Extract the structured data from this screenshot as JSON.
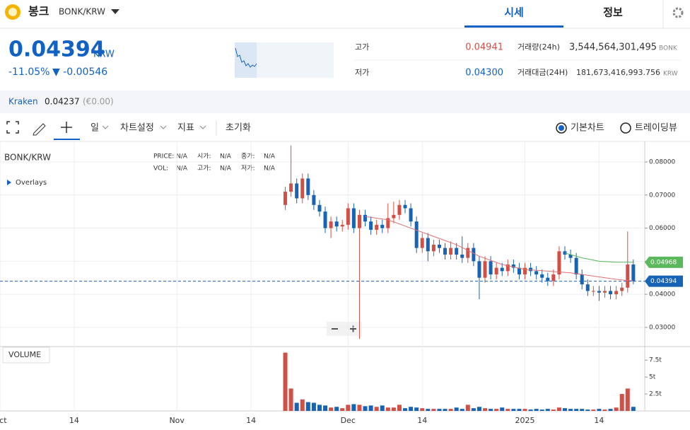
{
  "header": {
    "coin_name": "봉크",
    "pair": "BONK/KRW",
    "tabs": [
      "시세",
      "정보"
    ]
  },
  "ticker": {
    "price": "0.04394",
    "currency": "KRW",
    "change_rate": "-11.05%",
    "change": "▼ -0.00546",
    "high_label": "고가",
    "high": "0.04941",
    "low_label": "저가",
    "low": "0.04300",
    "volume_label": "거래량(24h)",
    "volume": "3,544,564,301,495",
    "volume_unit": "BONK",
    "value_label": "거래대금(24H)",
    "value": "181,673,416,993.756",
    "value_unit": "KRW"
  },
  "exchange": {
    "name": "Kraken",
    "price": "0.04237",
    "price_eur": "(€0.00)"
  },
  "toolbar": {
    "interval": "일",
    "settings": "차트설정",
    "indicators": "지표",
    "reset": "초기화",
    "modes": [
      "기본차트",
      "트레이딩뷰"
    ]
  },
  "chart_data": {
    "type": "candlestick",
    "title": "BONK/KRW",
    "overlays_label": "Overlays",
    "volume_title": "VOLUME",
    "legend": [
      {
        "label": "PRICE:",
        "value": "N/A"
      },
      {
        "label": "시가:",
        "value": "N/A"
      },
      {
        "label": "종가:",
        "value": "N/A"
      },
      {
        "label": "VOL:",
        "value": "N/A"
      },
      {
        "label": "고가:",
        "value": "N/A"
      },
      {
        "label": "저가:",
        "value": "N/A"
      }
    ],
    "up_color": "#d24f45",
    "down_color": "#1763b6",
    "x": [
      50,
      51,
      52,
      53,
      54,
      55,
      56,
      57,
      58,
      59,
      60,
      61,
      62,
      63,
      64,
      65,
      66,
      67,
      68,
      69,
      70,
      71,
      72,
      73,
      74,
      75,
      76,
      77,
      78,
      79,
      80,
      81,
      82,
      83,
      84,
      85,
      86,
      87,
      88,
      89,
      90,
      91,
      92,
      93,
      94,
      95,
      96,
      97,
      98,
      99,
      100,
      101,
      102,
      103,
      104,
      105,
      106,
      107,
      108,
      109,
      110,
      111
    ],
    "open": [
      0.067,
      0.071,
      0.0735,
      0.069,
      0.075,
      0.07,
      0.067,
      0.065,
      0.06,
      0.062,
      0.0605,
      0.061,
      0.066,
      0.06,
      0.064,
      0.062,
      0.0595,
      0.061,
      0.06,
      0.063,
      0.064,
      0.067,
      0.066,
      0.062,
      0.054,
      0.057,
      0.053,
      0.055,
      0.054,
      0.052,
      0.054,
      0.052,
      0.051,
      0.054,
      0.05,
      0.045,
      0.05,
      0.046,
      0.048,
      0.047,
      0.049,
      0.048,
      0.046,
      0.048,
      0.047,
      0.046,
      0.045,
      0.044,
      0.046,
      0.053,
      0.052,
      0.051,
      0.046,
      0.043,
      0.041,
      0.041,
      0.0405,
      0.041,
      0.04,
      0.041,
      0.042,
      0.049
    ],
    "high": [
      0.0725,
      0.085,
      0.075,
      0.0765,
      0.0765,
      0.0715,
      0.0685,
      0.0665,
      0.0635,
      0.0635,
      0.0625,
      0.0675,
      0.0675,
      0.0655,
      0.0655,
      0.0635,
      0.0625,
      0.0625,
      0.0675,
      0.068,
      0.0685,
      0.0685,
      0.0675,
      0.0635,
      0.0585,
      0.0585,
      0.0565,
      0.0565,
      0.0555,
      0.056,
      0.0555,
      0.0575,
      0.0555,
      0.0555,
      0.0515,
      0.0515,
      0.0515,
      0.0495,
      0.0495,
      0.0505,
      0.0505,
      0.0495,
      0.0495,
      0.0495,
      0.0485,
      0.0475,
      0.0465,
      0.0475,
      0.0545,
      0.0545,
      0.0535,
      0.0525,
      0.0475,
      0.0445,
      0.0425,
      0.0425,
      0.0425,
      0.0425,
      0.0425,
      0.0435,
      0.059,
      0.0505
    ],
    "low": [
      0.0655,
      0.0695,
      0.0675,
      0.0675,
      0.0685,
      0.0655,
      0.0635,
      0.0585,
      0.057,
      0.059,
      0.059,
      0.0595,
      0.0585,
      0.0265,
      0.0605,
      0.058,
      0.058,
      0.0585,
      0.0585,
      0.0615,
      0.0625,
      0.0645,
      0.0605,
      0.0525,
      0.0525,
      0.05,
      0.0515,
      0.0525,
      0.0505,
      0.0505,
      0.0505,
      0.0495,
      0.0495,
      0.0485,
      0.0385,
      0.0435,
      0.0445,
      0.0445,
      0.0455,
      0.0455,
      0.0465,
      0.0445,
      0.0445,
      0.0455,
      0.0445,
      0.0435,
      0.0425,
      0.0425,
      0.0445,
      0.0505,
      0.0495,
      0.0445,
      0.0415,
      0.0395,
      0.0395,
      0.038,
      0.039,
      0.0385,
      0.0385,
      0.0395,
      0.0405,
      0.043
    ],
    "close": [
      0.071,
      0.0735,
      0.069,
      0.075,
      0.07,
      0.067,
      0.065,
      0.06,
      0.062,
      0.0605,
      0.061,
      0.066,
      0.06,
      0.064,
      0.062,
      0.0595,
      0.061,
      0.06,
      0.063,
      0.064,
      0.067,
      0.066,
      0.062,
      0.054,
      0.057,
      0.053,
      0.055,
      0.054,
      0.052,
      0.054,
      0.052,
      0.051,
      0.054,
      0.05,
      0.045,
      0.05,
      0.046,
      0.048,
      0.047,
      0.049,
      0.048,
      0.046,
      0.048,
      0.047,
      0.046,
      0.045,
      0.044,
      0.046,
      0.053,
      0.052,
      0.051,
      0.046,
      0.043,
      0.041,
      0.041,
      0.0405,
      0.041,
      0.04,
      0.041,
      0.042,
      0.049,
      0.0439
    ],
    "volume": [
      8.6,
      3.3,
      1.2,
      1.7,
      1.3,
      1.2,
      0.9,
      0.8,
      0.5,
      0.6,
      0.4,
      0.9,
      1.0,
      0.9,
      0.7,
      0.8,
      0.6,
      0.8,
      0.5,
      0.5,
      0.9,
      0.4,
      0.6,
      0.5,
      0.4,
      0.3,
      0.3,
      0.3,
      0.3,
      0.3,
      0.5,
      0.3,
      0.9,
      0.4,
      0.6,
      0.4,
      0.3,
      0.3,
      0.5,
      0.3,
      0.3,
      0.3,
      0.3,
      0.2,
      0.3,
      0.2,
      0.3,
      0.2,
      0.5,
      0.4,
      0.3,
      0.3,
      0.3,
      0.2,
      0.2,
      0.3,
      0.2,
      0.3,
      0.5,
      2.5,
      3.3,
      0.6
    ],
    "lines": [
      {
        "color": "#e07070",
        "x": [
          64,
          68,
          72,
          76,
          80,
          84,
          88,
          92,
          96,
          100,
          104,
          108,
          111
        ],
        "values": [
          0.0635,
          0.0625,
          0.06,
          0.0575,
          0.055,
          0.0515,
          0.049,
          0.0475,
          0.047,
          0.0465,
          0.0455,
          0.0445,
          0.044
        ]
      },
      {
        "color": "#5cb85c",
        "x": [
          99,
          102,
          105,
          108,
          111
        ],
        "values": [
          0.0525,
          0.051,
          0.05,
          0.0497,
          0.04968
        ],
        "value_label": "0.04968"
      }
    ],
    "last_price": {
      "value": 0.04394,
      "label": "0.04394"
    },
    "xlim": [
      0,
      113
    ],
    "xticks": [
      {
        "value": 0,
        "label": "Oct"
      },
      {
        "value": 13,
        "label": "14"
      },
      {
        "value": 31,
        "label": "Nov"
      },
      {
        "value": 44,
        "label": "14"
      },
      {
        "value": 61,
        "label": "Dec"
      },
      {
        "value": 74,
        "label": "14"
      },
      {
        "value": 92,
        "label": "2025"
      },
      {
        "value": 105,
        "label": "14"
      }
    ],
    "ylim": [
      0.0242,
      0.0862
    ],
    "yticks": [
      {
        "value": 0.03,
        "label": "0.03000"
      },
      {
        "value": 0.04,
        "label": "0.04000"
      },
      {
        "value": 0.05,
        "label": "0.05000"
      },
      {
        "value": 0.06,
        "label": "0.06000"
      },
      {
        "value": 0.07,
        "label": "0.07000"
      },
      {
        "value": 0.08,
        "label": "0.08000"
      }
    ],
    "volume_ylim": [
      0,
      9.5
    ],
    "volume_yticks": [
      {
        "value": 2.5,
        "label": "2.5t"
      },
      {
        "value": 5,
        "label": "5t"
      },
      {
        "value": 7.5,
        "label": "7.5t"
      }
    ],
    "grid": true
  }
}
